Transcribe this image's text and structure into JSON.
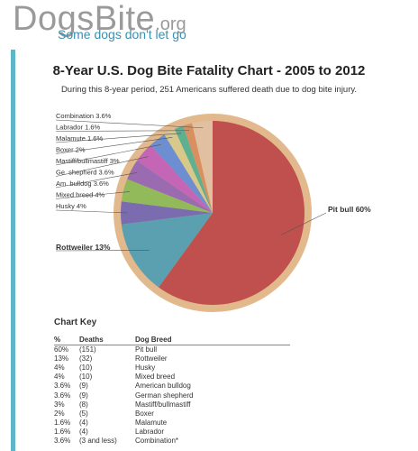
{
  "logo": {
    "main": "DogsBite",
    "suffix": ".org",
    "tagline": "Some dogs don't let go"
  },
  "chart_data": {
    "type": "pie",
    "title": "8-Year U.S. Dog Bite Fatality Chart - 2005 to 2012",
    "subtitle": "During this 8-year period, 251 Americans suffered death due to dog bite injury.",
    "slices": [
      {
        "label": "Pit bull 60%",
        "value": 60,
        "color": "#c0504d"
      },
      {
        "label": "Rottweiler 13%",
        "value": 13,
        "color": "#5ba0b0"
      },
      {
        "label": "Husky 4%",
        "value": 4,
        "color": "#7b6cb0"
      },
      {
        "label": "Mixed breed 4%",
        "value": 4,
        "color": "#92b95a"
      },
      {
        "label": "Am. bulldog 3.6%",
        "value": 3.6,
        "color": "#9a6bb0"
      },
      {
        "label": "Ge. shepherd 3.6%",
        "value": 3.6,
        "color": "#c466b5"
      },
      {
        "label": "Mastiff/bullmastiff 3%",
        "value": 3,
        "color": "#6d8ed0"
      },
      {
        "label": "Boxer 2%",
        "value": 2,
        "color": "#d8c88a"
      },
      {
        "label": "Malamute 1.6%",
        "value": 1.6,
        "color": "#5fb090"
      },
      {
        "label": "Labrador 1.6%",
        "value": 1.6,
        "color": "#d89060"
      },
      {
        "label": "Combination 3.6%",
        "value": 3.6,
        "color": "#e0c0a0"
      }
    ],
    "ring_color": "#e2b98c"
  },
  "key": {
    "title": "Chart Key",
    "headers": [
      "%",
      "Deaths",
      "Dog Breed"
    ],
    "rows": [
      [
        "60%",
        "(151)",
        "Pit bull"
      ],
      [
        "13%",
        "(32)",
        "Rottweiler"
      ],
      [
        "4%",
        "(10)",
        "Husky"
      ],
      [
        "4%",
        "(10)",
        "Mixed breed"
      ],
      [
        "3.6%",
        "(9)",
        "American bulldog"
      ],
      [
        "3.6%",
        "(9)",
        "German shepherd"
      ],
      [
        "3%",
        "(8)",
        "Mastiff/bullmastiff"
      ],
      [
        "2%",
        "(5)",
        "Boxer"
      ],
      [
        "1.6%",
        "(4)",
        "Malamute"
      ],
      [
        "1.6%",
        "(4)",
        "Labrador"
      ],
      [
        "3.6%",
        "(3 and less)",
        "Combination*"
      ]
    ]
  }
}
